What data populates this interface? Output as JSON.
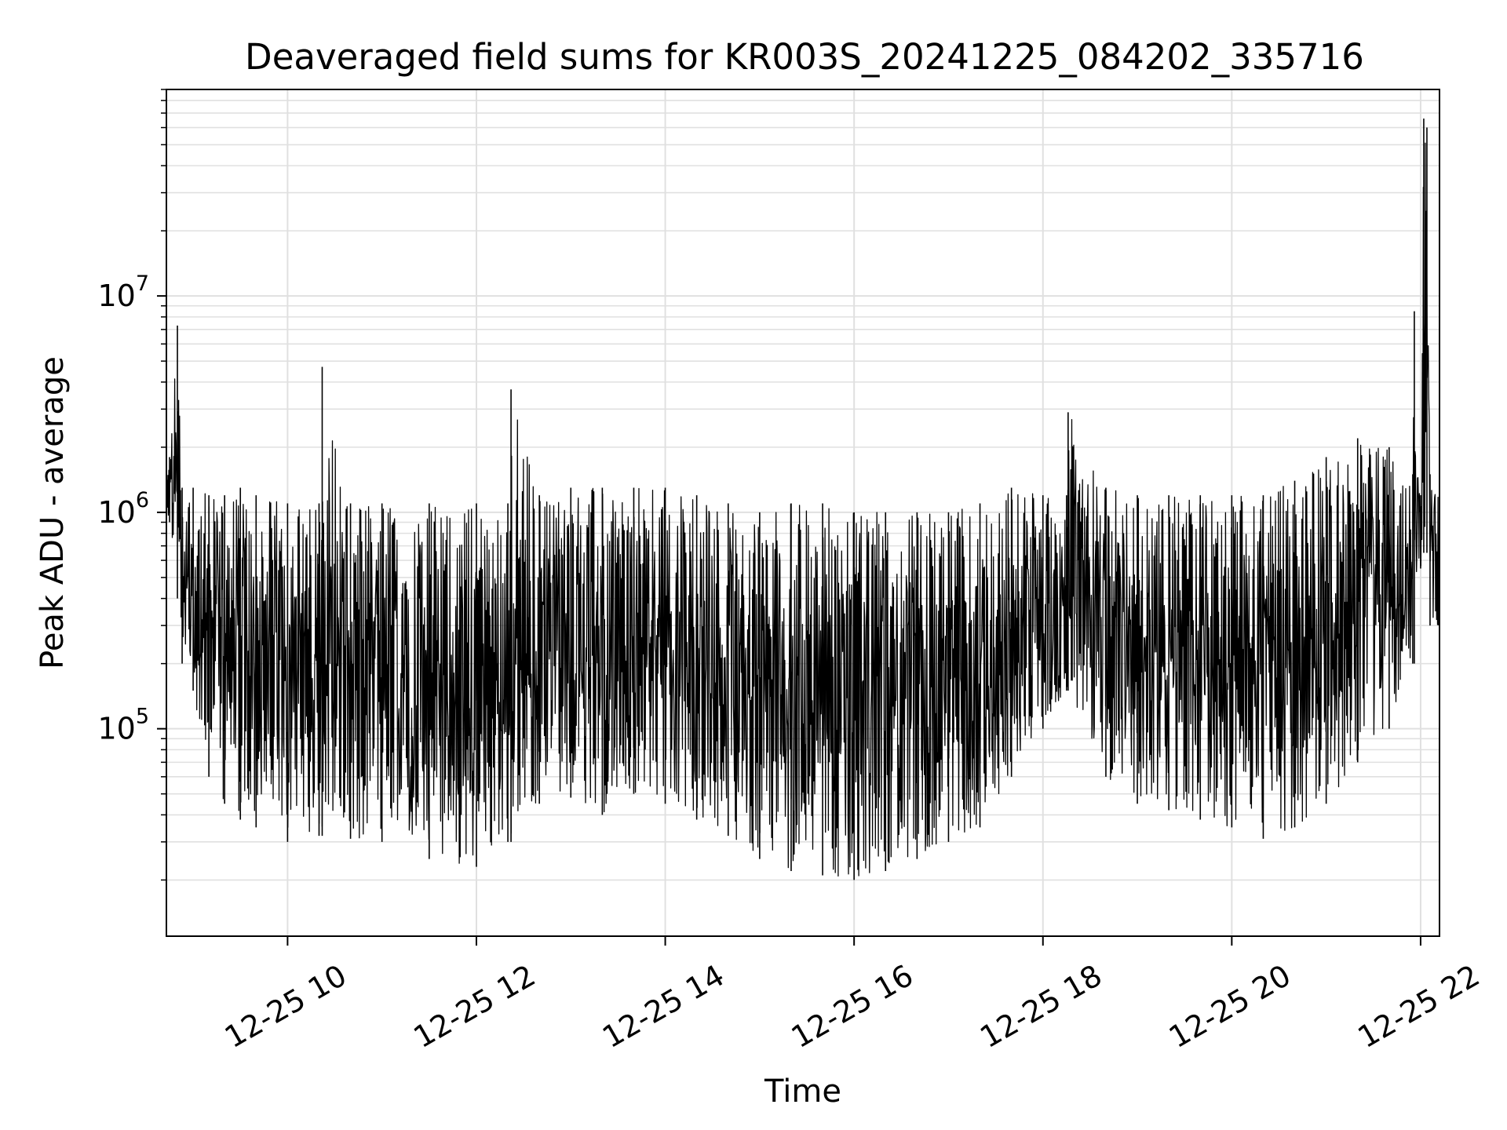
{
  "chart_data": {
    "type": "line",
    "title": "Deaveraged field sums for KR003S_20241225_084202_335716",
    "xlabel": "Time",
    "ylabel": "Peak ADU - average",
    "yscale": "log",
    "xlim": [
      "12-25 08:43",
      "12-25 22:12"
    ],
    "ylim": [
      11000,
      90000000
    ],
    "grid": true,
    "legend": "none",
    "colors": {
      "line": "#000000",
      "grid": "#e0e0e0",
      "axes": "#000000",
      "background": "#ffffff"
    },
    "x_ticks": [
      {
        "label": "12-25 10",
        "time": "12-25 10:00"
      },
      {
        "label": "12-25 12",
        "time": "12-25 12:00"
      },
      {
        "label": "12-25 14",
        "time": "12-25 14:00"
      },
      {
        "label": "12-25 16",
        "time": "12-25 16:00"
      },
      {
        "label": "12-25 18",
        "time": "12-25 18:00"
      },
      {
        "label": "12-25 20",
        "time": "12-25 20:00"
      },
      {
        "label": "12-25 22",
        "time": "12-25 22:00"
      }
    ],
    "y_ticks": [
      {
        "base": "10",
        "exp": "5",
        "value": 100000
      },
      {
        "base": "10",
        "exp": "6",
        "value": 1000000
      },
      {
        "base": "10",
        "exp": "7",
        "value": 10000000
      }
    ],
    "series": [
      {
        "times": [
          "12-25 08:43",
          "12-25 08:45",
          "12-25 08:50",
          "12-25 08:53",
          "12-25 09:00",
          "12-25 09:10",
          "12-25 09:20",
          "12-25 09:30",
          "12-25 09:40",
          "12-25 10:00",
          "12-25 10:20",
          "12-25 10:22",
          "12-25 10:40",
          "12-25 11:00",
          "12-25 11:30",
          "12-25 12:00",
          "12-25 12:20",
          "12-25 12:22",
          "12-25 12:40",
          "12-25 13:00",
          "12-25 13:20",
          "12-25 13:40",
          "12-25 14:00",
          "12-25 14:20",
          "12-25 14:40",
          "12-25 15:00",
          "12-25 15:20",
          "12-25 15:40",
          "12-25 16:00",
          "12-25 16:20",
          "12-25 16:40",
          "12-25 17:00",
          "12-25 17:20",
          "12-25 17:40",
          "12-25 18:00",
          "12-25 18:15",
          "12-25 18:16",
          "12-25 18:40",
          "12-25 19:00",
          "12-25 19:20",
          "12-25 19:40",
          "12-25 20:00",
          "12-25 20:20",
          "12-25 20:40",
          "12-25 21:00",
          "12-25 21:20",
          "12-25 21:40",
          "12-25 21:55",
          "12-25 21:56",
          "12-25 22:00",
          "12-25 22:02",
          "12-25 22:04",
          "12-25 22:06",
          "12-25 22:12"
        ],
        "peaks": [
          1500000,
          1800000,
          7300000,
          1300000,
          1300000,
          1200000,
          1200000,
          1300000,
          1200000,
          1100000,
          1100000,
          4700000,
          1100000,
          1100000,
          1100000,
          1100000,
          1100000,
          3700000,
          1200000,
          1300000,
          1300000,
          1300000,
          1300000,
          1200000,
          1100000,
          1000000,
          1100000,
          1100000,
          1000000,
          1000000,
          1000000,
          1000000,
          1100000,
          1300000,
          1200000,
          1200000,
          2900000,
          1300000,
          1200000,
          1200000,
          1200000,
          1200000,
          1200000,
          1400000,
          1800000,
          2200000,
          2000000,
          1500000,
          8500000,
          1200000,
          66000000,
          60000000,
          1500000,
          1200000
        ],
        "troughs": [
          1000000,
          900000,
          400000,
          200000,
          150000,
          60000,
          45000,
          38000,
          35000,
          30000,
          32000,
          32000,
          31000,
          30000,
          25000,
          23000,
          30000,
          30000,
          45000,
          48000,
          40000,
          50000,
          45000,
          38000,
          32000,
          25000,
          22000,
          21000,
          20000,
          22000,
          25000,
          30000,
          35000,
          60000,
          100000,
          150000,
          150000,
          60000,
          45000,
          42000,
          38000,
          35000,
          31000,
          35000,
          45000,
          70000,
          100000,
          200000,
          200000,
          550000,
          650000,
          650000,
          300000,
          300000
        ]
      }
    ]
  }
}
